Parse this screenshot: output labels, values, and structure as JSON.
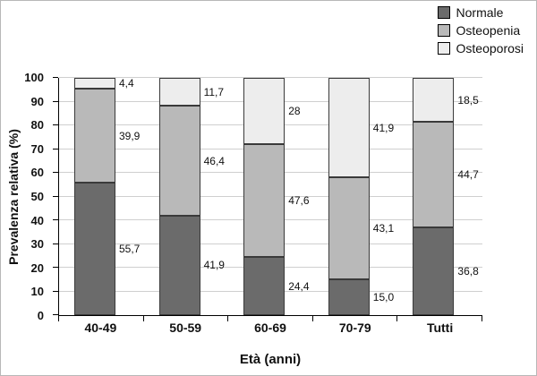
{
  "chart_data": {
    "type": "bar",
    "stacked": true,
    "title": "",
    "xlabel": "Età (anni)",
    "ylabel": "Prevalenza relativa (%)",
    "ylim": [
      0,
      100
    ],
    "ytick_step": 10,
    "grid": true,
    "legend_position": "top-right",
    "categories": [
      "40-49",
      "50-59",
      "60-69",
      "70-79",
      "Tutti"
    ],
    "series": [
      {
        "name": "Normale",
        "color": "#6b6b6b",
        "values": [
          55.7,
          41.9,
          24.4,
          15.0,
          36.8
        ],
        "labels": [
          "55,7",
          "41,9",
          "24,4",
          "15,0",
          "36,8"
        ]
      },
      {
        "name": "Osteopenia",
        "color": "#b9b9b9",
        "values": [
          39.9,
          46.4,
          47.6,
          43.1,
          44.7
        ],
        "labels": [
          "39,9",
          "46,4",
          "47,6",
          "43,1",
          "44,7"
        ]
      },
      {
        "name": "Osteoporosi",
        "color": "#ededed",
        "values": [
          4.4,
          11.7,
          28.0,
          41.9,
          18.5
        ],
        "labels": [
          "4,4",
          "11,7",
          "28",
          "41,9",
          "18,5"
        ]
      }
    ]
  }
}
